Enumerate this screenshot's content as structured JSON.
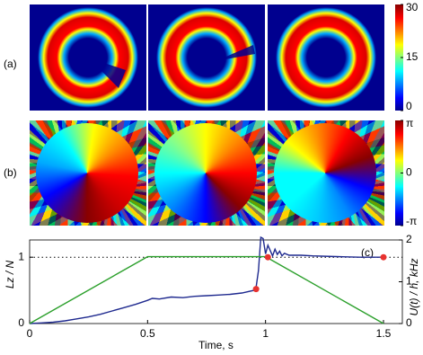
{
  "figure": {
    "panel_labels": [
      "(a)",
      "(b)"
    ],
    "colorbars": [
      {
        "ticks": [
          0,
          15,
          30
        ],
        "lim": [
          0,
          30
        ]
      },
      {
        "ticks": [
          {
            "value": -3.1416,
            "label": "-π"
          },
          0,
          {
            "value": 3.1416,
            "label": "π"
          }
        ],
        "lim": [
          -3.1416,
          3.1416
        ]
      }
    ]
  },
  "chart_data": {
    "type": "line",
    "panel_label": "(c)",
    "xlabel": "Time, s",
    "ylabel": "Lz / N",
    "y2label": "U(t) / h, kHz",
    "xlim": [
      0,
      1.58
    ],
    "xticks": [
      0,
      0.5,
      1,
      1.5
    ],
    "ylim": [
      0,
      1.26
    ],
    "yticks": [
      0,
      1
    ],
    "y2lim": [
      0,
      2
    ],
    "y2ticks": [
      0,
      1,
      2
    ],
    "reference_line": 1,
    "series": [
      {
        "color": "#1f2a8f",
        "x": [
          0,
          0.05,
          0.1,
          0.15,
          0.2,
          0.25,
          0.3,
          0.35,
          0.4,
          0.45,
          0.5,
          0.52,
          0.55,
          0.6,
          0.65,
          0.7,
          0.75,
          0.8,
          0.85,
          0.9,
          0.95,
          0.96,
          0.97,
          0.98,
          0.99,
          1.0,
          1.01,
          1.02,
          1.03,
          1.04,
          1.05,
          1.06,
          1.07,
          1.08,
          1.1,
          1.15,
          1.2,
          1.3,
          1.4,
          1.5
        ],
        "values": [
          0,
          0.01,
          0.02,
          0.04,
          0.07,
          0.1,
          0.14,
          0.19,
          0.24,
          0.29,
          0.35,
          0.38,
          0.37,
          0.4,
          0.39,
          0.41,
          0.42,
          0.43,
          0.44,
          0.46,
          0.5,
          0.55,
          0.8,
          1.3,
          1.28,
          1.05,
          1.18,
          1.1,
          1.02,
          1.12,
          1.04,
          1.09,
          1.02,
          1.06,
          1.03,
          1.03,
          1.02,
          1.01,
          1.0,
          1.0
        ]
      },
      {
        "color": "#2ca02c",
        "axis": "y2",
        "x": [
          0,
          0.5,
          1,
          1.5
        ],
        "values": [
          0,
          1.6,
          1.6,
          0
        ]
      },
      {
        "color": "#e8322f",
        "marker": true,
        "x": [
          0.96,
          1.01,
          1.5
        ],
        "values": [
          0.52,
          1.0,
          1.0
        ]
      }
    ]
  }
}
